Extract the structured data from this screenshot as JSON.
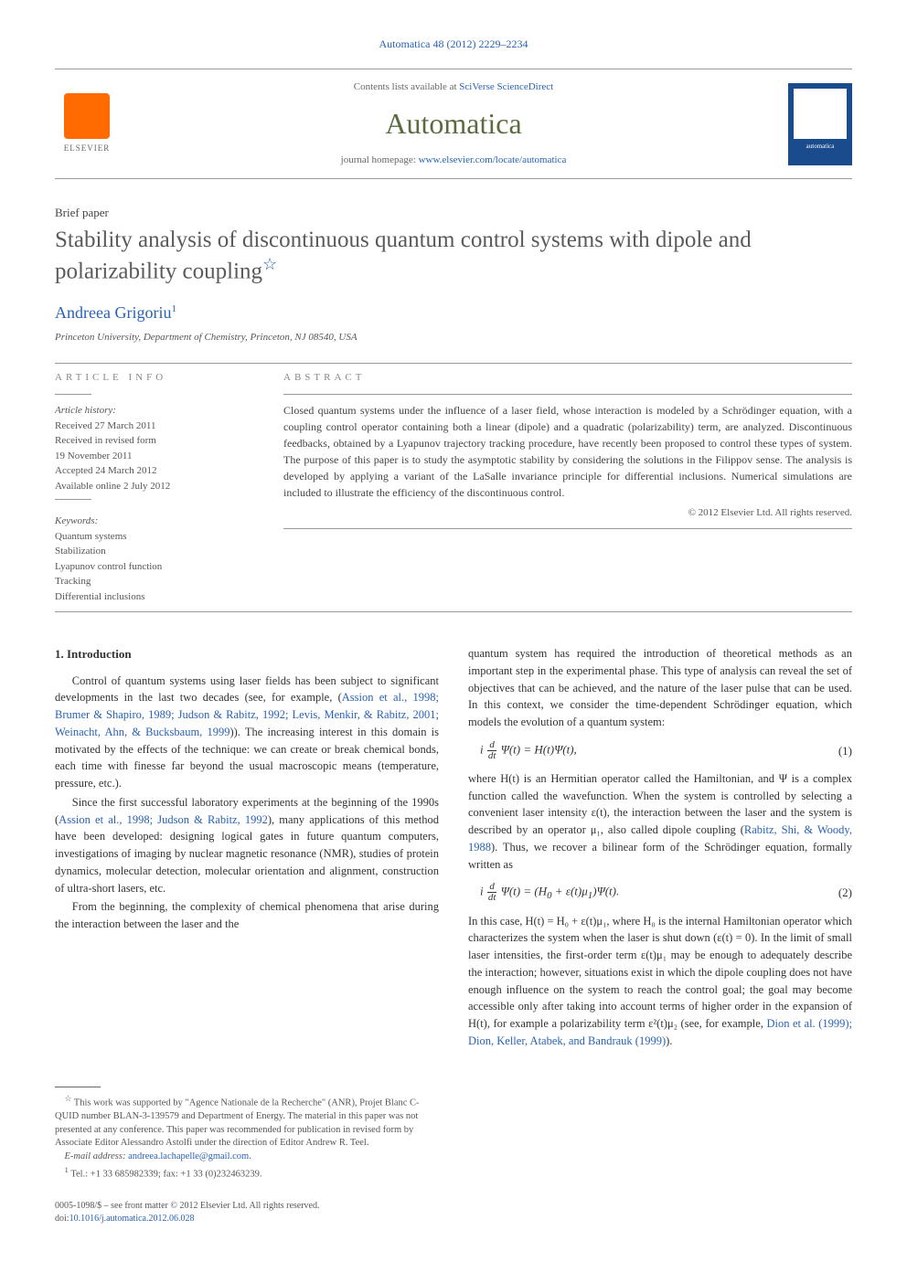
{
  "citation": "Automatica 48 (2012) 2229–2234",
  "masthead": {
    "contents_prefix": "Contents lists available at ",
    "contents_link": "SciVerse ScienceDirect",
    "journal": "Automatica",
    "homepage_prefix": "journal homepage: ",
    "homepage_link": "www.elsevier.com/locate/automatica",
    "publisher": "ELSEVIER",
    "cover_label": "automatica"
  },
  "paper_type": "Brief paper",
  "title": "Stability analysis of discontinuous quantum control systems with dipole and polarizability coupling",
  "title_footnote_marker": "☆",
  "author": "Andreea Grigoriu",
  "author_footnote_marker": "1",
  "affiliation": "Princeton University, Department of Chemistry, Princeton, NJ 08540, USA",
  "info_label": "ARTICLE INFO",
  "abstract_label": "ABSTRACT",
  "history_label": "Article history:",
  "history": [
    "Received 27 March 2011",
    "Received in revised form",
    "19 November 2011",
    "Accepted 24 March 2012",
    "Available online 2 July 2012"
  ],
  "keywords_label": "Keywords:",
  "keywords": [
    "Quantum systems",
    "Stabilization",
    "Lyapunov control function",
    "Tracking",
    "Differential inclusions"
  ],
  "abstract": "Closed quantum systems under the influence of a laser field, whose interaction is modeled by a Schrödinger equation, with a coupling control operator containing both a linear (dipole) and a quadratic (polarizability) term, are analyzed. Discontinuous feedbacks, obtained by a Lyapunov trajectory tracking procedure, have recently been proposed to control these types of system. The purpose of this paper is to study the asymptotic stability by considering the solutions in the Filippov sense. The analysis is developed by applying a variant of the LaSalle invariance principle for differential inclusions. Numerical simulations are included to illustrate the efficiency of the discontinuous control.",
  "copyright": "© 2012 Elsevier Ltd. All rights reserved.",
  "section1_heading": "1. Introduction",
  "col1": {
    "p1a": "Control of quantum systems using laser fields has been subject to significant developments in the last two decades (see, for example, (",
    "p1_refs": "Assion et al., 1998; Brumer & Shapiro, 1989; Judson & Rabitz, 1992; Levis, Menkir, & Rabitz, 2001; Weinacht, Ahn, & Bucksbaum, 1999",
    "p1b": ")). The increasing interest in this domain is motivated by the effects of the technique: we can create or break chemical bonds, each time with finesse far beyond the usual macroscopic means (temperature, pressure, etc.).",
    "p2a": "Since the first successful laboratory experiments at the beginning of the 1990s (",
    "p2_refs": "Assion et al., 1998; Judson & Rabitz, 1992",
    "p2b": "), many applications of this method have been developed: designing logical gates in future quantum computers, investigations of imaging by nuclear magnetic resonance (NMR), studies of protein dynamics, molecular detection, molecular orientation and alignment, construction of ultra-short lasers, etc.",
    "p3": "From the beginning, the complexity of chemical phenomena that arise during the interaction between the laser and the"
  },
  "col2": {
    "p1": "quantum system has required the  introduction of theoretical methods as an important step in the experimental phase. This type of analysis can reveal the set of objectives that can be achieved, and the nature of the laser pulse that can be used. In this context, we consider the time-dependent Schrödinger equation, which models the evolution of a quantum system:",
    "eq1": "i (d/dt) Ψ(t) = H(t)Ψ(t),",
    "eq1_num": "(1)",
    "p2a": "where H(t) is an Hermitian operator called the Hamiltonian, and Ψ is a complex function called the wavefunction. When the system is controlled by selecting a convenient laser intensity ε(t), the interaction between the laser and the system is described by an operator μ₁, also called dipole coupling (",
    "p2_ref": "Rabitz, Shi, & Woody, 1988",
    "p2b": "). Thus, we recover a bilinear form of the Schrödinger equation, formally written as",
    "eq2": "i (d/dt) Ψ(t) = (H₀ + ε(t)μ₁)Ψ(t).",
    "eq2_num": "(2)",
    "p3a": "In this case, H(t) = H₀ + ε(t)μ₁, where H₀ is the internal Hamiltonian operator which characterizes the system when the laser is shut down (ε(t) = 0). In the limit of small laser intensities, the first-order term ε(t)μ₁ may be enough to adequately describe the interaction; however, situations exist in which the dipole coupling does not have enough influence on the system to reach the control goal; the goal may become accessible only after taking into account terms of higher order in the expansion of H(t), for example a polarizability term ε²(t)μ₂ (see, for example, ",
    "p3_ref": "Dion et al. (1999); Dion, Keller, Atabek, and Bandrauk (1999)",
    "p3b": ")."
  },
  "footnotes": {
    "star": "This work was supported by \"Agence Nationale de la Recherche\" (ANR), Projet Blanc C-QUID number BLAN-3-139579 and Department of Energy. The material in this paper was not presented at any conference. This paper was recommended for publication in revised form by Associate Editor Alessandro Astolfi under the direction of Editor Andrew R. Teel.",
    "email_label": "E-mail address: ",
    "email": "andreea.lachapelle@gmail.com",
    "fn1": "Tel.: +1 33 685982339; fax: +1 33 (0)232463239."
  },
  "footer": {
    "left1": "0005-1098/$ – see front matter © 2012 Elsevier Ltd. All rights reserved.",
    "doi_label": "doi:",
    "doi": "10.1016/j.automatica.2012.06.028"
  }
}
